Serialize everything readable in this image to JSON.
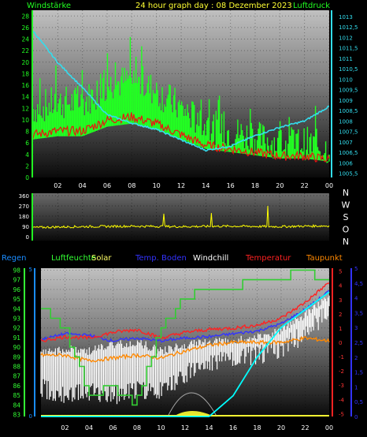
{
  "header": {
    "left_label": "Windstärke",
    "title": "24 hour graph day : 08 Dezember 2023",
    "right_label": "Luftdruck"
  },
  "legend": {
    "items": [
      {
        "label": "Regen",
        "color": "#1a8cff"
      },
      {
        "label": "Luftfeuchte",
        "color": "#33ff33"
      },
      {
        "label": "Solar",
        "color": "#ffff66"
      },
      {
        "label": "Temp. Boden",
        "color": "#3333ff"
      },
      {
        "label": "Windchill",
        "color": "#ffffff"
      },
      {
        "label": "Temperatur",
        "color": "#ff2222"
      },
      {
        "label": "Taupunkt",
        "color": "#ff8800"
      }
    ]
  },
  "colors": {
    "wind": "#22ff22",
    "gust": "#00dd00",
    "pressure": "#33ddee",
    "temperature": "#ff2222",
    "dewpoint": "#ff8800",
    "soil": "#3333ff",
    "windchill": "#ffffff",
    "humidity": "#33cc33",
    "solar": "#ffff33",
    "rain": "#00ffff",
    "direction": "#ffff00"
  },
  "chart_data": [
    {
      "type": "line",
      "title": "24 hour graph day : 08 Dezember 2023",
      "x_ticks": [
        "02",
        "04",
        "06",
        "08",
        "10",
        "12",
        "14",
        "16",
        "18",
        "20",
        "22",
        "00"
      ],
      "x": [
        "00",
        "02",
        "04",
        "06",
        "08",
        "10",
        "12",
        "14",
        "16",
        "18",
        "20",
        "22",
        "00"
      ],
      "y_left_label": "Windstärke",
      "y_left_ticks": [
        "0",
        "2",
        "4",
        "6",
        "8",
        "10",
        "12",
        "14",
        "16",
        "18",
        "20",
        "22",
        "24",
        "26",
        "28"
      ],
      "ylim_left": [
        0,
        29
      ],
      "y_right_label": "Luftdruck",
      "y_right_ticks": [
        "1005,5",
        "1006",
        "1006,5",
        "1007",
        "1007,5",
        "1008",
        "1008,5",
        "1009",
        "1009,5",
        "1010",
        "1010,5",
        "1011",
        "1011,5",
        "1012",
        "1012,5",
        "1013"
      ],
      "ylim_right": [
        1005.3,
        1013.3
      ],
      "series": [
        {
          "name": "Windstärke",
          "axis": "left",
          "values": [
            12,
            13,
            13,
            16,
            17,
            15,
            12,
            9,
            8,
            7,
            6,
            6,
            5
          ]
        },
        {
          "name": "Luftdruck",
          "axis": "right",
          "values": [
            1012.3,
            1010.8,
            1009.6,
            1008.3,
            1007.9,
            1007.6,
            1007.1,
            1006.6,
            1006.8,
            1007.3,
            1007.7,
            1008.0,
            1008.7
          ]
        }
      ]
    },
    {
      "type": "scatter",
      "title": "",
      "y_ticks": [
        "0",
        "90",
        "180",
        "270",
        "360"
      ],
      "ylim": [
        0,
        360
      ],
      "direction_labels": [
        "N",
        "W",
        "S",
        "O",
        "N"
      ],
      "x_ticks": [
        "02",
        "04",
        "06",
        "08",
        "10",
        "12",
        "14",
        "16",
        "18",
        "20",
        "22",
        "00"
      ],
      "values": [
        80,
        85,
        88,
        90,
        92,
        90,
        88,
        90,
        92,
        90,
        88,
        92,
        95
      ]
    },
    {
      "type": "line",
      "title": "",
      "x_ticks": [
        "02",
        "04",
        "06",
        "08",
        "10",
        "12",
        "14",
        "16",
        "18",
        "20",
        "22",
        "00"
      ],
      "x": [
        "00",
        "02",
        "04",
        "06",
        "08",
        "10",
        "12",
        "14",
        "16",
        "18",
        "20",
        "22",
        "00"
      ],
      "y_left_ticks": [
        "83",
        "84",
        "85",
        "86",
        "87",
        "88",
        "89",
        "90",
        "91",
        "92",
        "93",
        "94",
        "95",
        "96",
        "97",
        "98"
      ],
      "ylim_humidity": [
        82.8,
        98.2
      ],
      "y_right_ticks": [
        "5",
        "4",
        "3",
        "2",
        "1",
        "0",
        "-1",
        "-2",
        "-3",
        "-4",
        "-5"
      ],
      "ylim_temp": [
        -5.2,
        5.2
      ],
      "y_right2_ticks": [
        "5",
        "4,5",
        "4",
        "3,5",
        "3",
        "2,5",
        "2",
        "1,5",
        "1",
        "0,5",
        "0"
      ],
      "left_small_ticks": [
        "5",
        "0"
      ],
      "series": [
        {
          "name": "Luftfeuchte",
          "axis": "humidity",
          "values": [
            94,
            92,
            85,
            86,
            84,
            92,
            95,
            96,
            96,
            97,
            97,
            98,
            97
          ]
        },
        {
          "name": "Temperatur",
          "axis": "temp",
          "values": [
            0.1,
            0.4,
            0.3,
            0.7,
            0.9,
            0.3,
            0.7,
            0.9,
            1.0,
            1.2,
            1.7,
            2.8,
            4.2
          ]
        },
        {
          "name": "Taupunkt",
          "axis": "temp",
          "values": [
            -0.9,
            -0.9,
            -1.3,
            -1.1,
            -0.9,
            -1.1,
            -0.6,
            -0.2,
            0.0,
            0.0,
            0.0,
            0.3,
            0.1
          ]
        },
        {
          "name": "Temp. Boden",
          "axis": "temp",
          "values": [
            0.2,
            0.6,
            0.5,
            0.1,
            0.3,
            0.1,
            0.3,
            0.4,
            0.6,
            0.8,
            1.3,
            2.3,
            3.6
          ]
        },
        {
          "name": "Windchill",
          "axis": "temp",
          "values": [
            -2.5,
            -3.0,
            -2.8,
            -3.0,
            -2.6,
            -2.8,
            -1.5,
            -0.8,
            -0.5,
            -0.2,
            0.3,
            1.3,
            3.0
          ]
        },
        {
          "name": "Solar",
          "axis": "temp",
          "values": [
            -5.0,
            -5.0,
            -5.0,
            -5.0,
            -5.0,
            -5.0,
            -4.8,
            -4.6,
            -5.0,
            -5.0,
            -5.0,
            -5.0,
            -5.0
          ]
        },
        {
          "name": "Regen",
          "axis": "rain",
          "values": [
            0,
            0,
            0,
            0,
            0,
            0,
            0,
            0,
            0.7,
            2.0,
            3.0,
            3.6,
            4.2
          ]
        }
      ]
    }
  ]
}
